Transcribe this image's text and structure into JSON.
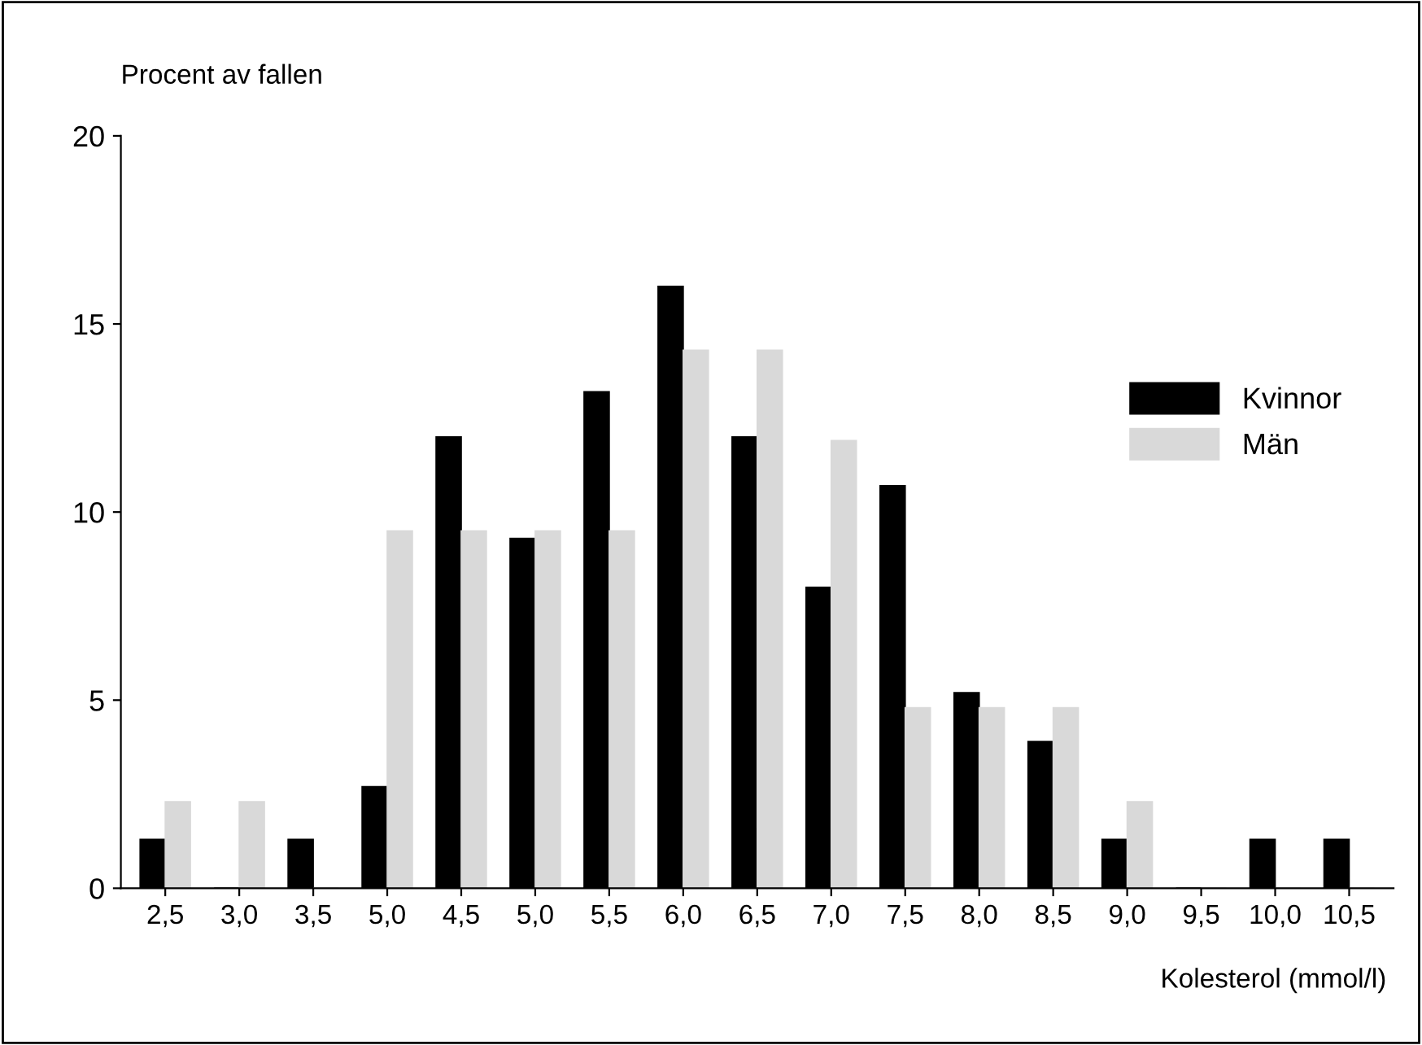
{
  "chart_data": {
    "type": "bar",
    "categories": [
      "2,5",
      "3,0",
      "3,5",
      "5,0",
      "4,5",
      "5,0",
      "5,5",
      "6,0",
      "6,5",
      "7,0",
      "7,5",
      "8,0",
      "8,5",
      "9,0",
      "9,5",
      "10,0",
      "10,5"
    ],
    "series": [
      {
        "name": "Kvinnor",
        "color": "#000000",
        "values": [
          1.3,
          0,
          1.3,
          2.7,
          12.0,
          9.3,
          13.2,
          16.0,
          12.0,
          8.0,
          10.7,
          5.2,
          3.9,
          1.3,
          0,
          1.3,
          1.3
        ]
      },
      {
        "name": "Män",
        "color": "#d9d9d9",
        "values": [
          2.3,
          2.3,
          0,
          9.5,
          9.5,
          9.5,
          9.5,
          14.3,
          14.3,
          11.9,
          4.8,
          4.8,
          4.8,
          2.3,
          0,
          0,
          0
        ]
      }
    ],
    "ylabel": "Procent av fallen",
    "xlabel": "Kolesterol (mmol/l)",
    "ylim": [
      0,
      20
    ],
    "yticks": [
      0,
      5,
      10,
      15,
      20
    ],
    "grid": false,
    "legend": "right"
  }
}
